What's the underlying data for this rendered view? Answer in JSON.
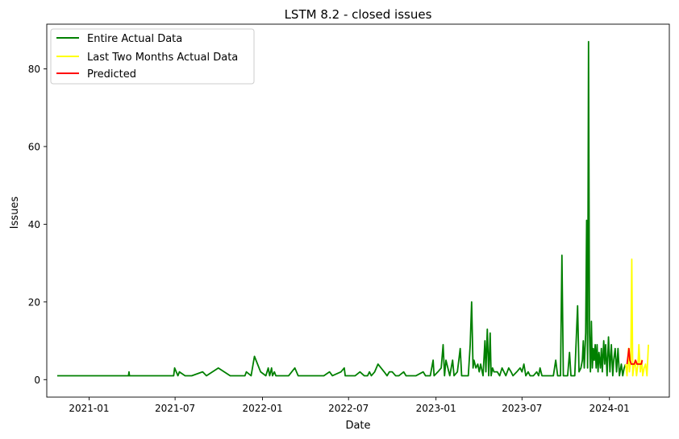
{
  "chart_data": {
    "type": "line",
    "title": "LSTM 8.2 - closed issues",
    "xlabel": "Date",
    "ylabel": "Issues",
    "x_ticks": [
      "2021-01",
      "2021-07",
      "2022-01",
      "2022-07",
      "2023-01",
      "2023-07",
      "2024-01"
    ],
    "y_ticks": [
      "0",
      "20",
      "40",
      "60",
      "80"
    ],
    "xlim": [
      "2020-10-04",
      "2024-05-06"
    ],
    "ylim": [
      -4.5,
      91.5
    ],
    "grid": false,
    "legend_position": "top-left",
    "series": [
      {
        "name": "Entire Actual Data",
        "color": "#008000",
        "points": [
          [
            "2020-10-26",
            1
          ],
          [
            "2021-03-25",
            1
          ],
          [
            "2021-03-26",
            2
          ],
          [
            "2021-03-27",
            1
          ],
          [
            "2021-06-28",
            1
          ],
          [
            "2021-06-30",
            3
          ],
          [
            "2021-07-07",
            1
          ],
          [
            "2021-07-10",
            2
          ],
          [
            "2021-07-22",
            1
          ],
          [
            "2021-08-05",
            1
          ],
          [
            "2021-08-28",
            2
          ],
          [
            "2021-09-05",
            1
          ],
          [
            "2021-09-30",
            3
          ],
          [
            "2021-10-25",
            1
          ],
          [
            "2021-11-25",
            1
          ],
          [
            "2021-11-28",
            2
          ],
          [
            "2021-12-08",
            1
          ],
          [
            "2021-12-15",
            6
          ],
          [
            "2021-12-28",
            2
          ],
          [
            "2022-01-08",
            1
          ],
          [
            "2022-01-13",
            3
          ],
          [
            "2022-01-16",
            1
          ],
          [
            "2022-01-20",
            3
          ],
          [
            "2022-01-22",
            1
          ],
          [
            "2022-01-26",
            2
          ],
          [
            "2022-01-29",
            1
          ],
          [
            "2022-02-25",
            1
          ],
          [
            "2022-03-10",
            3
          ],
          [
            "2022-03-17",
            1
          ],
          [
            "2022-05-10",
            1
          ],
          [
            "2022-05-22",
            2
          ],
          [
            "2022-05-28",
            1
          ],
          [
            "2022-06-15",
            2
          ],
          [
            "2022-06-22",
            3
          ],
          [
            "2022-06-24",
            1
          ],
          [
            "2022-07-15",
            1
          ],
          [
            "2022-07-25",
            2
          ],
          [
            "2022-08-03",
            1
          ],
          [
            "2022-08-10",
            1
          ],
          [
            "2022-08-14",
            2
          ],
          [
            "2022-08-18",
            1
          ],
          [
            "2022-08-25",
            2
          ],
          [
            "2022-09-01",
            4
          ],
          [
            "2022-09-14",
            2
          ],
          [
            "2022-09-20",
            1
          ],
          [
            "2022-09-25",
            2
          ],
          [
            "2022-10-01",
            2
          ],
          [
            "2022-10-08",
            1
          ],
          [
            "2022-10-15",
            1
          ],
          [
            "2022-10-25",
            2
          ],
          [
            "2022-10-30",
            1
          ],
          [
            "2022-11-20",
            1
          ],
          [
            "2022-12-05",
            2
          ],
          [
            "2022-12-10",
            1
          ],
          [
            "2022-12-20",
            1
          ],
          [
            "2022-12-26",
            5
          ],
          [
            "2022-12-28",
            1
          ],
          [
            "2023-01-05",
            2
          ],
          [
            "2023-01-12",
            3
          ],
          [
            "2023-01-16",
            9
          ],
          [
            "2023-01-19",
            1
          ],
          [
            "2023-01-22",
            5
          ],
          [
            "2023-01-26",
            3
          ],
          [
            "2023-01-30",
            1
          ],
          [
            "2023-02-05",
            5
          ],
          [
            "2023-02-08",
            1
          ],
          [
            "2023-02-15",
            2
          ],
          [
            "2023-02-21",
            8
          ],
          [
            "2023-02-24",
            1
          ],
          [
            "2023-03-10",
            1
          ],
          [
            "2023-03-14",
            9
          ],
          [
            "2023-03-17",
            20
          ],
          [
            "2023-03-20",
            3
          ],
          [
            "2023-03-22",
            5
          ],
          [
            "2023-03-26",
            3
          ],
          [
            "2023-03-30",
            4
          ],
          [
            "2023-04-02",
            2
          ],
          [
            "2023-04-05",
            4
          ],
          [
            "2023-04-10",
            1
          ],
          [
            "2023-04-14",
            10
          ],
          [
            "2023-04-16",
            2
          ],
          [
            "2023-04-19",
            13
          ],
          [
            "2023-04-22",
            1
          ],
          [
            "2023-04-25",
            12
          ],
          [
            "2023-04-27",
            1
          ],
          [
            "2023-04-30",
            3
          ],
          [
            "2023-05-03",
            2
          ],
          [
            "2023-05-10",
            2
          ],
          [
            "2023-05-15",
            1
          ],
          [
            "2023-05-20",
            3
          ],
          [
            "2023-05-24",
            2
          ],
          [
            "2023-05-28",
            1
          ],
          [
            "2023-06-03",
            3
          ],
          [
            "2023-06-08",
            2
          ],
          [
            "2023-06-12",
            1
          ],
          [
            "2023-06-20",
            2
          ],
          [
            "2023-06-27",
            3
          ],
          [
            "2023-07-01",
            2
          ],
          [
            "2023-07-05",
            4
          ],
          [
            "2023-07-09",
            1
          ],
          [
            "2023-07-14",
            2
          ],
          [
            "2023-07-18",
            1
          ],
          [
            "2023-07-25",
            1
          ],
          [
            "2023-08-01",
            2
          ],
          [
            "2023-08-05",
            1
          ],
          [
            "2023-08-08",
            3
          ],
          [
            "2023-08-12",
            1
          ],
          [
            "2023-08-20",
            1
          ],
          [
            "2023-08-30",
            1
          ],
          [
            "2023-09-05",
            1
          ],
          [
            "2023-09-10",
            5
          ],
          [
            "2023-09-14",
            1
          ],
          [
            "2023-09-20",
            1
          ],
          [
            "2023-09-23",
            32
          ],
          [
            "2023-09-26",
            1
          ],
          [
            "2023-09-30",
            1
          ],
          [
            "2023-10-05",
            1
          ],
          [
            "2023-10-09",
            7
          ],
          [
            "2023-10-12",
            1
          ],
          [
            "2023-10-20",
            1
          ],
          [
            "2023-10-26",
            19
          ],
          [
            "2023-10-29",
            2
          ],
          [
            "2023-11-02",
            3
          ],
          [
            "2023-11-05",
            5
          ],
          [
            "2023-11-07",
            10
          ],
          [
            "2023-11-09",
            3
          ],
          [
            "2023-11-12",
            12
          ],
          [
            "2023-11-14",
            41
          ],
          [
            "2023-11-16",
            3
          ],
          [
            "2023-11-18",
            87
          ],
          [
            "2023-11-20",
            12
          ],
          [
            "2023-11-22",
            2
          ],
          [
            "2023-11-24",
            15
          ],
          [
            "2023-11-26",
            3
          ],
          [
            "2023-11-28",
            8
          ],
          [
            "2023-11-30",
            5
          ],
          [
            "2023-12-02",
            9
          ],
          [
            "2023-12-04",
            3
          ],
          [
            "2023-12-06",
            9
          ],
          [
            "2023-12-08",
            2
          ],
          [
            "2023-12-10",
            7
          ],
          [
            "2023-12-13",
            3
          ],
          [
            "2023-12-15",
            8
          ],
          [
            "2023-12-17",
            2
          ],
          [
            "2023-12-20",
            10
          ],
          [
            "2023-12-22",
            4
          ],
          [
            "2023-12-24",
            9
          ],
          [
            "2023-12-27",
            1
          ],
          [
            "2023-12-30",
            11
          ],
          [
            "2024-01-02",
            2
          ],
          [
            "2024-01-05",
            9
          ],
          [
            "2024-01-08",
            1
          ],
          [
            "2024-01-10",
            5
          ],
          [
            "2024-01-13",
            8
          ],
          [
            "2024-01-16",
            2
          ],
          [
            "2024-01-19",
            8
          ],
          [
            "2024-01-22",
            1
          ],
          [
            "2024-01-26",
            4
          ],
          [
            "2024-01-29",
            1
          ],
          [
            "2024-02-01",
            3
          ],
          [
            "2024-02-04",
            4
          ]
        ]
      },
      {
        "name": "Last Two Months Actual Data",
        "color": "#ffff00",
        "points": [
          [
            "2024-02-04",
            4
          ],
          [
            "2024-02-07",
            1
          ],
          [
            "2024-02-10",
            8
          ],
          [
            "2024-02-12",
            2
          ],
          [
            "2024-02-15",
            5
          ],
          [
            "2024-02-17",
            31
          ],
          [
            "2024-02-19",
            1
          ],
          [
            "2024-02-21",
            3
          ],
          [
            "2024-02-24",
            5
          ],
          [
            "2024-02-27",
            1
          ],
          [
            "2024-03-01",
            4
          ],
          [
            "2024-03-03",
            9
          ],
          [
            "2024-03-06",
            2
          ],
          [
            "2024-03-09",
            5
          ],
          [
            "2024-03-11",
            1
          ],
          [
            "2024-03-14",
            3
          ],
          [
            "2024-03-17",
            4
          ],
          [
            "2024-03-20",
            1
          ],
          [
            "2024-03-23",
            9
          ]
        ]
      },
      {
        "name": "Predicted",
        "color": "#ff0000",
        "points": [
          [
            "2024-02-07",
            4
          ],
          [
            "2024-02-09",
            6
          ],
          [
            "2024-02-11",
            8
          ],
          [
            "2024-02-13",
            5
          ],
          [
            "2024-02-16",
            4
          ],
          [
            "2024-02-19",
            4
          ],
          [
            "2024-02-22",
            4
          ],
          [
            "2024-02-25",
            5
          ],
          [
            "2024-02-28",
            4
          ],
          [
            "2024-03-02",
            4
          ],
          [
            "2024-03-05",
            4
          ],
          [
            "2024-03-08",
            4
          ],
          [
            "2024-03-10",
            5
          ]
        ]
      }
    ]
  }
}
